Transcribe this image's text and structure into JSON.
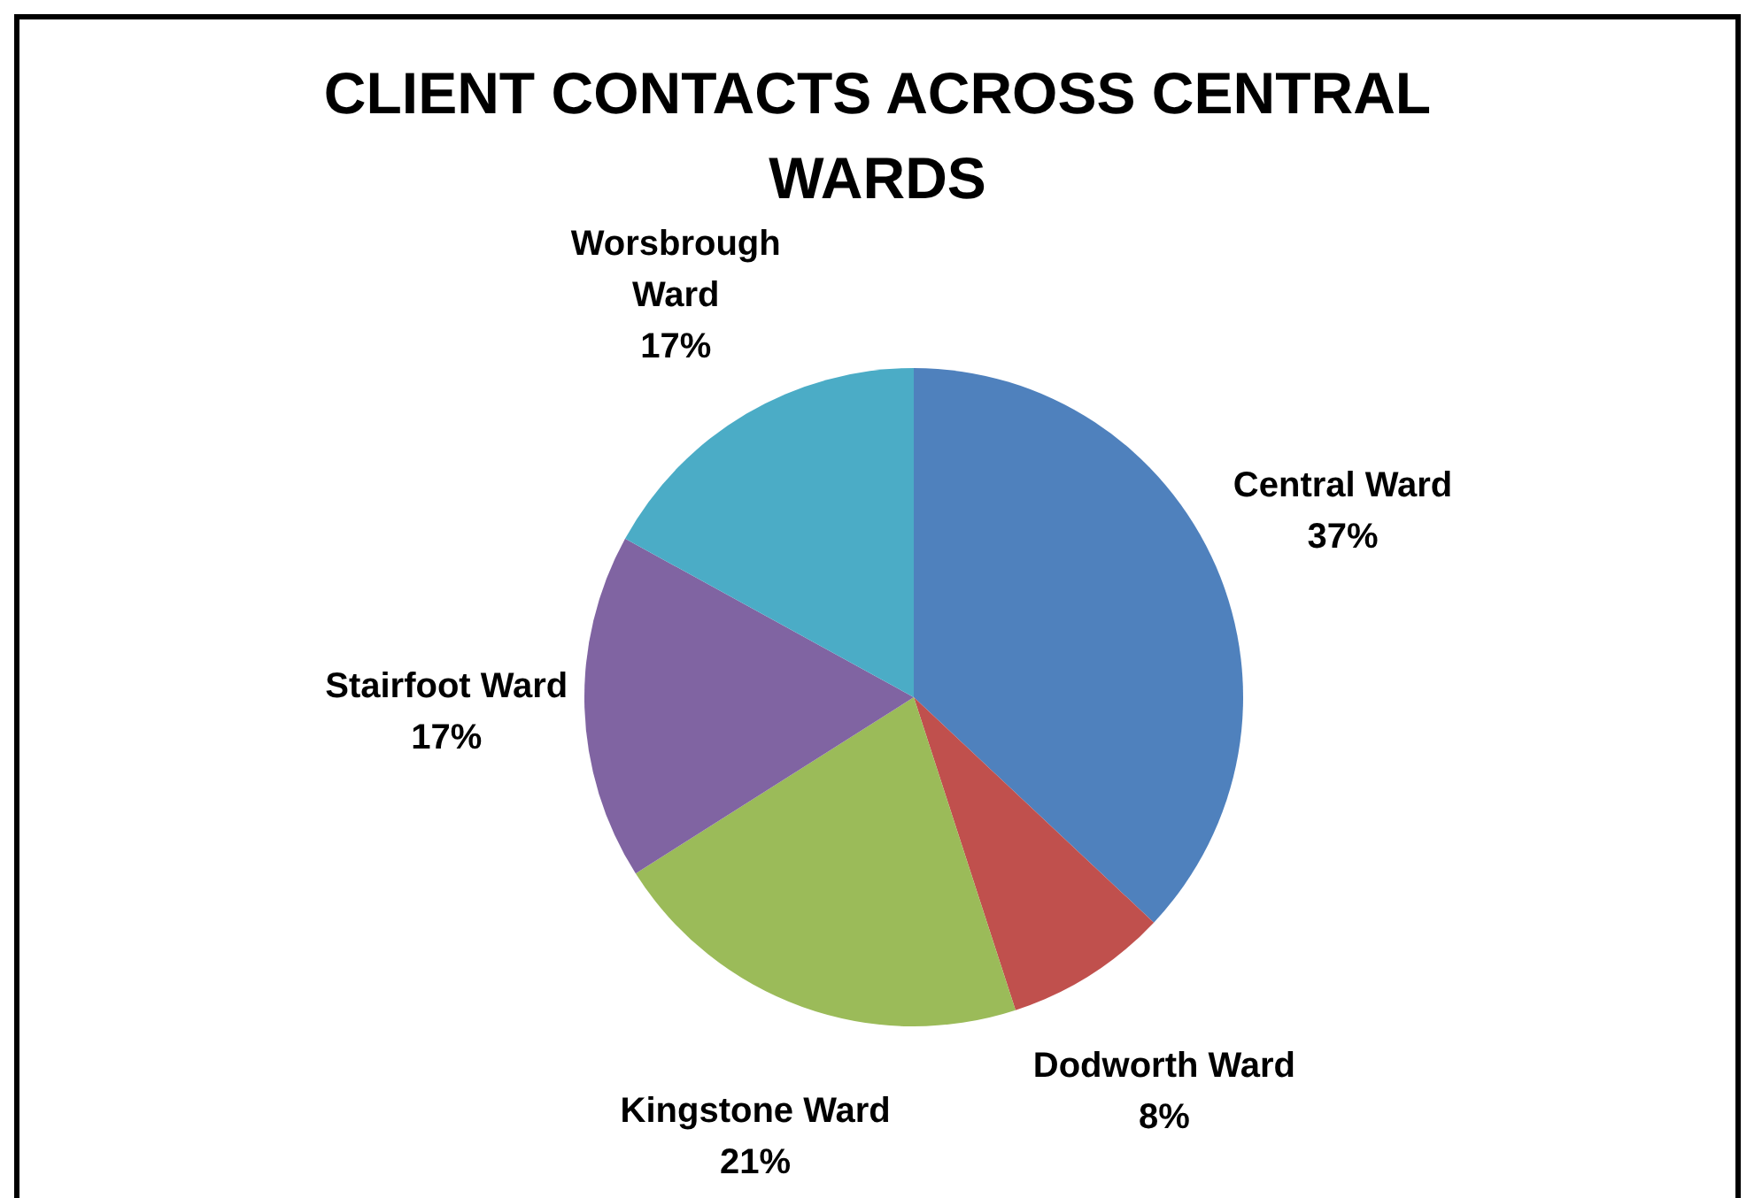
{
  "chart_data": {
    "type": "pie",
    "title": "CLIENT CONTACTS ACROSS CENTRAL WARDS",
    "categories": [
      "Central Ward",
      "Dodworth Ward",
      "Kingstone Ward",
      "Stairfoot Ward",
      "Worsbrough Ward"
    ],
    "values": [
      37,
      8,
      21,
      17,
      17
    ],
    "value_labels": [
      "37%",
      "8%",
      "21%",
      "17%",
      "17%"
    ],
    "colors": [
      "#4f81bd",
      "#c0504d",
      "#9bbb59",
      "#8064a2",
      "#4bacc6"
    ],
    "legend": false
  }
}
